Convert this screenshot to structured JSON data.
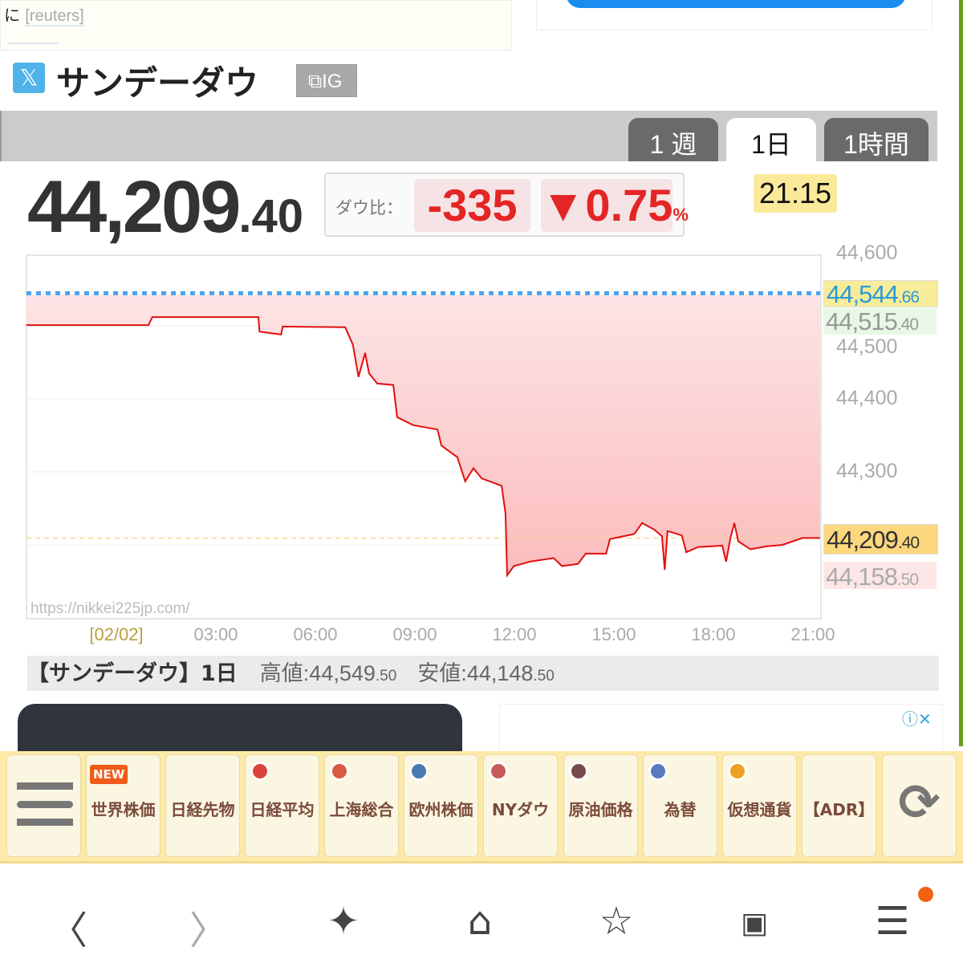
{
  "news": {
    "text": "に",
    "source": "[reuters]"
  },
  "header": {
    "title": "サンデーダウ",
    "x_icon": "x-logo-icon",
    "ig_button": "IG"
  },
  "tabs": [
    {
      "label": "1 週",
      "active": false
    },
    {
      "label": "1日",
      "active": true
    },
    {
      "label": "1時間",
      "active": false
    }
  ],
  "quote": {
    "price_int": "44,209",
    "price_dec": ".40",
    "change_label": "ダウ比：",
    "change": "-335",
    "change_pct": "▼0.75",
    "pct_unit": "%",
    "time": "21:15",
    "colors": {
      "down": "#e42525"
    }
  },
  "chart_data": {
    "type": "area",
    "ylim": [
      44150,
      44600
    ],
    "yticks": [
      "44,600",
      "44,500",
      "44,400",
      "44,300"
    ],
    "xticks": [
      "[02/02]",
      "03:00",
      "06:00",
      "09:00",
      "12:00",
      "15:00",
      "18:00",
      "21:00"
    ],
    "watermark": "https://nikkei225jp.com/",
    "reference_line": {
      "value": 44544.66,
      "label_int": "44,544",
      "label_dec": ".66",
      "color": "#4aa3f0"
    },
    "high": {
      "label_int": "44,515",
      "label_dec": ".40"
    },
    "current": {
      "value": 44209.4,
      "label_int": "44,209",
      "label_dec": ".40"
    },
    "low": {
      "label_int": "44,158",
      "label_dec": ".50"
    },
    "line_color": "#e01010",
    "series": [
      [
        "02/01 21:17",
        44501
      ],
      [
        "02/02 00:58",
        44501
      ],
      [
        "02/02 01:05",
        44512
      ],
      [
        "02/02 04:17",
        44512
      ],
      [
        "02/02 04:19",
        44492
      ],
      [
        "02/02 04:58",
        44488
      ],
      [
        "02/02 05:01",
        44499
      ],
      [
        "02/02 06:54",
        44498
      ],
      [
        "02/02 07:08",
        44474
      ],
      [
        "02/02 07:18",
        44430
      ],
      [
        "02/02 07:30",
        44463
      ],
      [
        "02/02 07:37",
        44435
      ],
      [
        "02/02 07:52",
        44421
      ],
      [
        "02/02 08:21",
        44419
      ],
      [
        "02/02 08:28",
        44375
      ],
      [
        "02/02 08:57",
        44364
      ],
      [
        "02/02 09:41",
        44358
      ],
      [
        "02/02 09:48",
        44336
      ],
      [
        "02/02 10:17",
        44320
      ],
      [
        "02/02 10:31",
        44287
      ],
      [
        "02/02 10:46",
        44305
      ],
      [
        "02/02 11:01",
        44291
      ],
      [
        "02/02 11:37",
        44281
      ],
      [
        "02/02 11:44",
        44243
      ],
      [
        "02/02 11:47",
        44158.5
      ],
      [
        "02/02 11:59",
        44171
      ],
      [
        "02/02 12:28",
        44177
      ],
      [
        "02/02 13:11",
        44182
      ],
      [
        "02/02 13:26",
        44171
      ],
      [
        "02/02 13:55",
        44174
      ],
      [
        "02/02 14:09",
        44188
      ],
      [
        "02/02 14:46",
        44188
      ],
      [
        "02/02 14:53",
        44208
      ],
      [
        "02/02 15:37",
        44215
      ],
      [
        "02/02 15:51",
        44230
      ],
      [
        "02/02 16:13",
        44221
      ],
      [
        "02/02 16:27",
        44212
      ],
      [
        "02/02 16:32",
        44166
      ],
      [
        "02/02 16:37",
        44219
      ],
      [
        "02/02 17:03",
        44213
      ],
      [
        "02/02 17:11",
        44190
      ],
      [
        "02/02 17:32",
        44197
      ],
      [
        "02/02 18:16",
        44199
      ],
      [
        "02/02 18:23",
        44177
      ],
      [
        "02/02 18:31",
        44210
      ],
      [
        "02/02 18:38",
        44230
      ],
      [
        "02/02 18:45",
        44205
      ],
      [
        "02/02 19:07",
        44194
      ],
      [
        "02/02 19:36",
        44198
      ],
      [
        "02/02 20:05",
        44200
      ],
      [
        "02/02 20:41",
        44209.4
      ],
      [
        "02/02 21:13",
        44209.4
      ]
    ]
  },
  "summary": {
    "title": "【サンデーダウ】1日",
    "high": "高値:44,549",
    "high_dec": ".50",
    "low": "安値:44,148",
    "low_dec": ".50"
  },
  "nav": [
    {
      "label": "",
      "icon": "menu-icon"
    },
    {
      "label": "世界株価",
      "icon": "new-badge",
      "badge": "NEW"
    },
    {
      "label": "日経先物",
      "icon": ""
    },
    {
      "label": "日経平均",
      "icon": "japan-flag-icon",
      "color": "#d9453a"
    },
    {
      "label": "上海総合",
      "icon": "china-flag-icon",
      "color": "#d85a40"
    },
    {
      "label": "欧州株価",
      "icon": "eu-flag-icon",
      "color": "#4a78b0"
    },
    {
      "label": "NYダウ",
      "icon": "us-flag-icon",
      "color": "#c95a5a"
    },
    {
      "label": "原油価格",
      "icon": "oil-drop-icon",
      "color": "#7a4a4a"
    },
    {
      "label": "為替",
      "icon": "forex-flag-icon",
      "color": "#5a7ac0"
    },
    {
      "label": "仮想通貨",
      "icon": "bitcoin-icon",
      "color": "#f0a020"
    },
    {
      "label": "【ADR】",
      "icon": ""
    },
    {
      "label": "",
      "icon": "refresh-icon"
    }
  ]
}
